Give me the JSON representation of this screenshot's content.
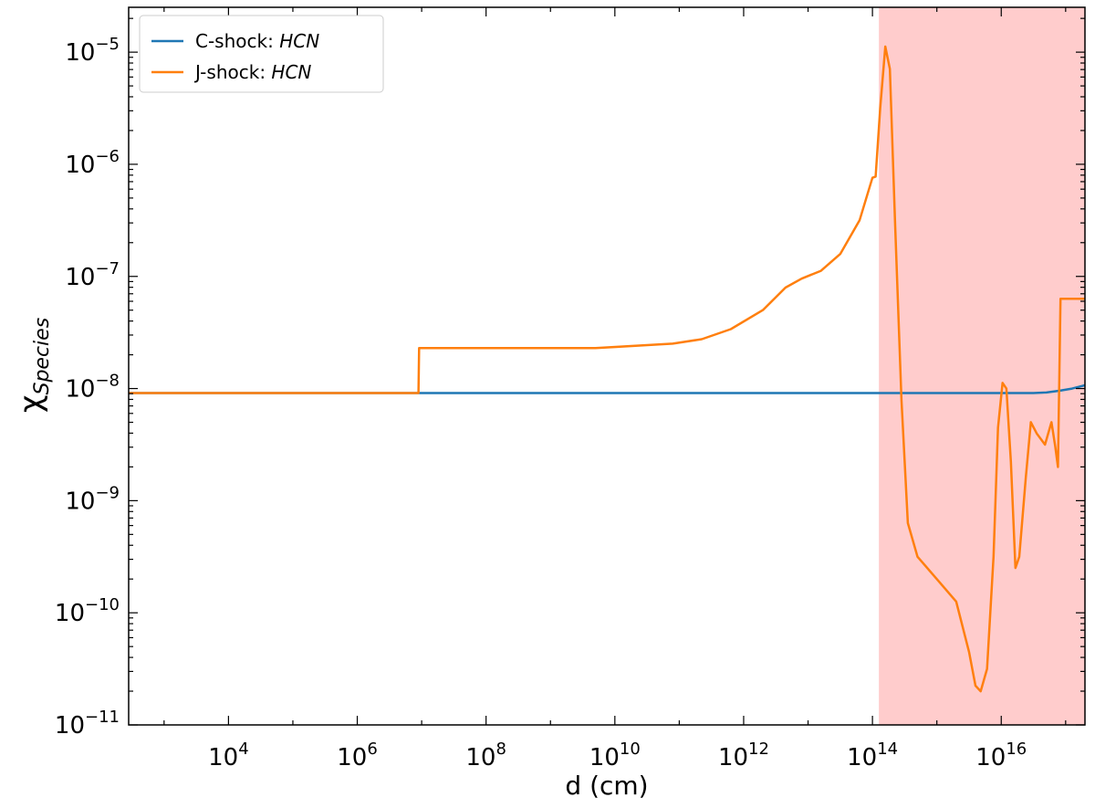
{
  "chart_data": {
    "type": "line",
    "title": "",
    "xlabel": "d (cm)",
    "ylabel": "χ",
    "ylabel_sub": "Species",
    "x_scale": "log",
    "y_scale": "log",
    "xlim_log10": [
      2.45,
      17.3
    ],
    "ylim_log10": [
      -11,
      -4.6
    ],
    "grid": false,
    "legend_placement": "top-left",
    "x_ticks": [
      {
        "exp": 4,
        "base": "10",
        "sup": "4"
      },
      {
        "exp": 6,
        "base": "10",
        "sup": "6"
      },
      {
        "exp": 8,
        "base": "10",
        "sup": "8"
      },
      {
        "exp": 10,
        "base": "10",
        "sup": "10"
      },
      {
        "exp": 12,
        "base": "10",
        "sup": "12"
      },
      {
        "exp": 14,
        "base": "10",
        "sup": "14"
      },
      {
        "exp": 16,
        "base": "10",
        "sup": "16"
      }
    ],
    "y_ticks": [
      {
        "exp": -11,
        "base": "10",
        "sup": "−11"
      },
      {
        "exp": -10,
        "base": "10",
        "sup": "−10"
      },
      {
        "exp": -9,
        "base": "10",
        "sup": "−9"
      },
      {
        "exp": -8,
        "base": "10",
        "sup": "−8"
      },
      {
        "exp": -7,
        "base": "10",
        "sup": "−7"
      },
      {
        "exp": -6,
        "base": "10",
        "sup": "−6"
      },
      {
        "exp": -5,
        "base": "10",
        "sup": "−5"
      }
    ],
    "shaded_region": {
      "x_from_log10": 14.1,
      "x_to_log10": 17.3,
      "color": "#ffcccc"
    },
    "series": [
      {
        "name": "C-shock: ",
        "name_species": "HCN",
        "color": "#1f77b4",
        "points_log10": [
          [
            2.45,
            -8.04
          ],
          [
            6.0,
            -8.04
          ],
          [
            10.0,
            -8.04
          ],
          [
            12.0,
            -8.04
          ],
          [
            14.0,
            -8.04
          ],
          [
            16.0,
            -8.04
          ],
          [
            16.5,
            -8.04
          ],
          [
            16.7,
            -8.035
          ],
          [
            16.9,
            -8.02
          ],
          [
            17.1,
            -8.0
          ],
          [
            17.3,
            -7.97
          ]
        ]
      },
      {
        "name": "J-shock: ",
        "name_species": "HCN",
        "color": "#ff7f0e",
        "points_log10": [
          [
            2.45,
            -8.04
          ],
          [
            6.95,
            -8.04
          ],
          [
            6.96,
            -7.64
          ],
          [
            9.7,
            -7.64
          ],
          [
            10.9,
            -7.6
          ],
          [
            11.35,
            -7.56
          ],
          [
            11.8,
            -7.47
          ],
          [
            12.3,
            -7.3
          ],
          [
            12.65,
            -7.1
          ],
          [
            12.9,
            -7.02
          ],
          [
            13.2,
            -6.95
          ],
          [
            13.5,
            -6.8
          ],
          [
            13.8,
            -6.5
          ],
          [
            14.0,
            -6.12
          ],
          [
            14.05,
            -6.11
          ],
          [
            14.12,
            -5.5
          ],
          [
            14.2,
            -4.95
          ],
          [
            14.27,
            -5.15
          ],
          [
            14.35,
            -6.5
          ],
          [
            14.45,
            -8.1
          ],
          [
            14.55,
            -9.2
          ],
          [
            14.7,
            -9.5
          ],
          [
            15.0,
            -9.7
          ],
          [
            15.3,
            -9.9
          ],
          [
            15.5,
            -10.35
          ],
          [
            15.6,
            -10.65
          ],
          [
            15.68,
            -10.7
          ],
          [
            15.78,
            -10.5
          ],
          [
            15.88,
            -9.5
          ],
          [
            15.95,
            -8.35
          ],
          [
            16.02,
            -7.95
          ],
          [
            16.08,
            -8.0
          ],
          [
            16.15,
            -8.65
          ],
          [
            16.22,
            -9.6
          ],
          [
            16.28,
            -9.5
          ],
          [
            16.38,
            -8.8
          ],
          [
            16.46,
            -8.3
          ],
          [
            16.55,
            -8.4
          ],
          [
            16.68,
            -8.5
          ],
          [
            16.78,
            -8.3
          ],
          [
            16.84,
            -8.52
          ],
          [
            16.88,
            -8.7
          ],
          [
            16.92,
            -7.2
          ],
          [
            17.0,
            -7.2
          ],
          [
            17.3,
            -7.2
          ]
        ]
      }
    ]
  }
}
